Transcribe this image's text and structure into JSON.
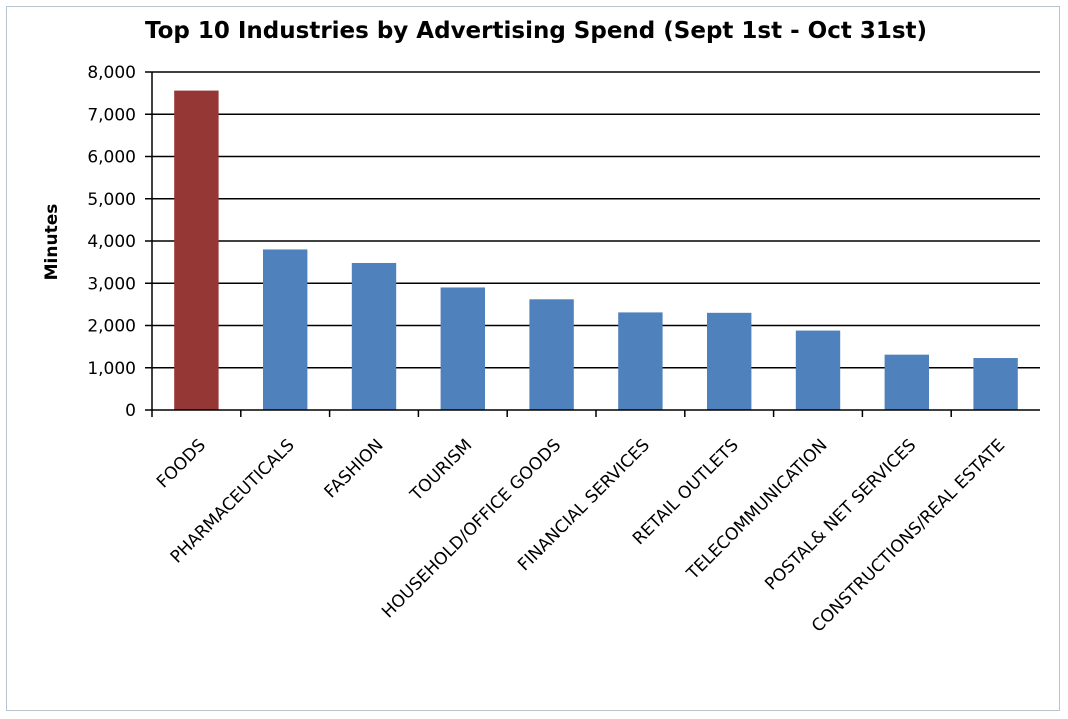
{
  "chart_data": {
    "type": "bar",
    "title": "Top 10 Industries by Advertising Spend (Sept 1st - Oct 31st)",
    "xlabel": "",
    "ylabel": "Minutes",
    "ylim": [
      0,
      8000
    ],
    "yticks": [
      0,
      1000,
      2000,
      3000,
      4000,
      5000,
      6000,
      7000,
      8000
    ],
    "ytick_labels": [
      "0",
      "1,000",
      "2,000",
      "3,000",
      "4,000",
      "5,000",
      "6,000",
      "7,000",
      "8,000"
    ],
    "grid": true,
    "legend": "none",
    "categories": [
      "FOODS",
      "PHARMACEUTICALS",
      "FASHION",
      "TOURISM",
      "HOUSEHOLD/OFFICE GOODS",
      "FINANCIAL SERVICES",
      "RETAIL OUTLETS",
      "TELECOMMUNICATION",
      "POSTAL& NET SERVICES",
      "CONSTRUCTIONS/REAL ESTATE"
    ],
    "values": [
      7560,
      3800,
      3480,
      2900,
      2620,
      2310,
      2300,
      1880,
      1310,
      1230
    ],
    "colors": [
      "#953735",
      "#4f81bd",
      "#4f81bd",
      "#4f81bd",
      "#4f81bd",
      "#4f81bd",
      "#4f81bd",
      "#4f81bd",
      "#4f81bd",
      "#4f81bd"
    ],
    "axis_color": "#000000",
    "border_color": "#b8c4d0"
  }
}
